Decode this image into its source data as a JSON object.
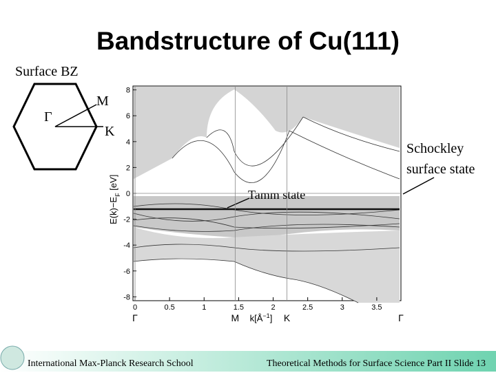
{
  "title": "Bandstructure of Cu(111)",
  "bz": {
    "label": "Surface BZ",
    "points": [
      "Γ",
      "M",
      "K"
    ]
  },
  "figure": {
    "y_label": [
      "E(k)−E",
      "F",
      " [eV]"
    ],
    "x_label": [
      "k[Å",
      "−1",
      "]"
    ],
    "ylim": [
      -8.3,
      8.3
    ],
    "yticks": [
      8,
      6,
      4,
      2,
      0,
      -2,
      -4,
      -6,
      -8
    ],
    "xlim": [
      -0.03,
      3.85
    ],
    "xticks": [
      0,
      0.5,
      1,
      1.5,
      2,
      2.5,
      3,
      3.5
    ],
    "symmetry_points": [
      {
        "value": 0,
        "label": "Γ"
      },
      {
        "value": 1.45,
        "label": "M"
      },
      {
        "value": 2.2,
        "label": "K"
      },
      {
        "value": 3.85,
        "label": "Γ"
      }
    ]
  },
  "annotations": {
    "tamm": "Tamm state",
    "shockley": [
      "Schockley",
      "surface state"
    ]
  },
  "footer": {
    "left": "International Max-Planck Research School",
    "right": "Theoretical Methods for Surface Science Part II  Slide 13"
  }
}
